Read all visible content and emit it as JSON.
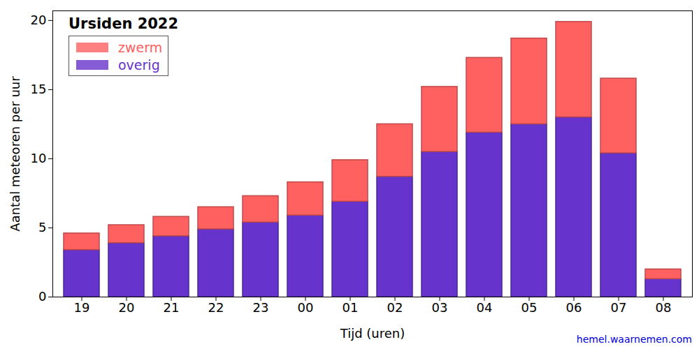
{
  "chart_data": {
    "type": "bar",
    "title": "Ursiden 2022",
    "stacked": true,
    "x_label": "Tijd (uren)",
    "y_label": "Aantal meteoren per uur",
    "caption": "hemel.waarnemen.com",
    "legend": "upper left",
    "categories": [
      "19",
      "20",
      "21",
      "22",
      "23",
      "00",
      "01",
      "02",
      "03",
      "04",
      "05",
      "06",
      "07",
      "08"
    ],
    "series": [
      {
        "name": "overig",
        "color": "#6633cc",
        "values": [
          3.4,
          3.9,
          4.4,
          4.9,
          5.4,
          5.9,
          6.9,
          8.7,
          10.5,
          11.9,
          12.5,
          13.0,
          10.4,
          1.3
        ]
      },
      {
        "name": "zwerm",
        "color": "#ff6060",
        "values": [
          1.2,
          1.3,
          1.4,
          1.6,
          1.9,
          2.4,
          3.0,
          3.8,
          4.7,
          5.4,
          6.2,
          6.9,
          5.4,
          0.7
        ]
      }
    ],
    "ylim": [
      0,
      20.7
    ],
    "yticks": [
      0,
      5,
      10,
      15,
      20
    ]
  }
}
